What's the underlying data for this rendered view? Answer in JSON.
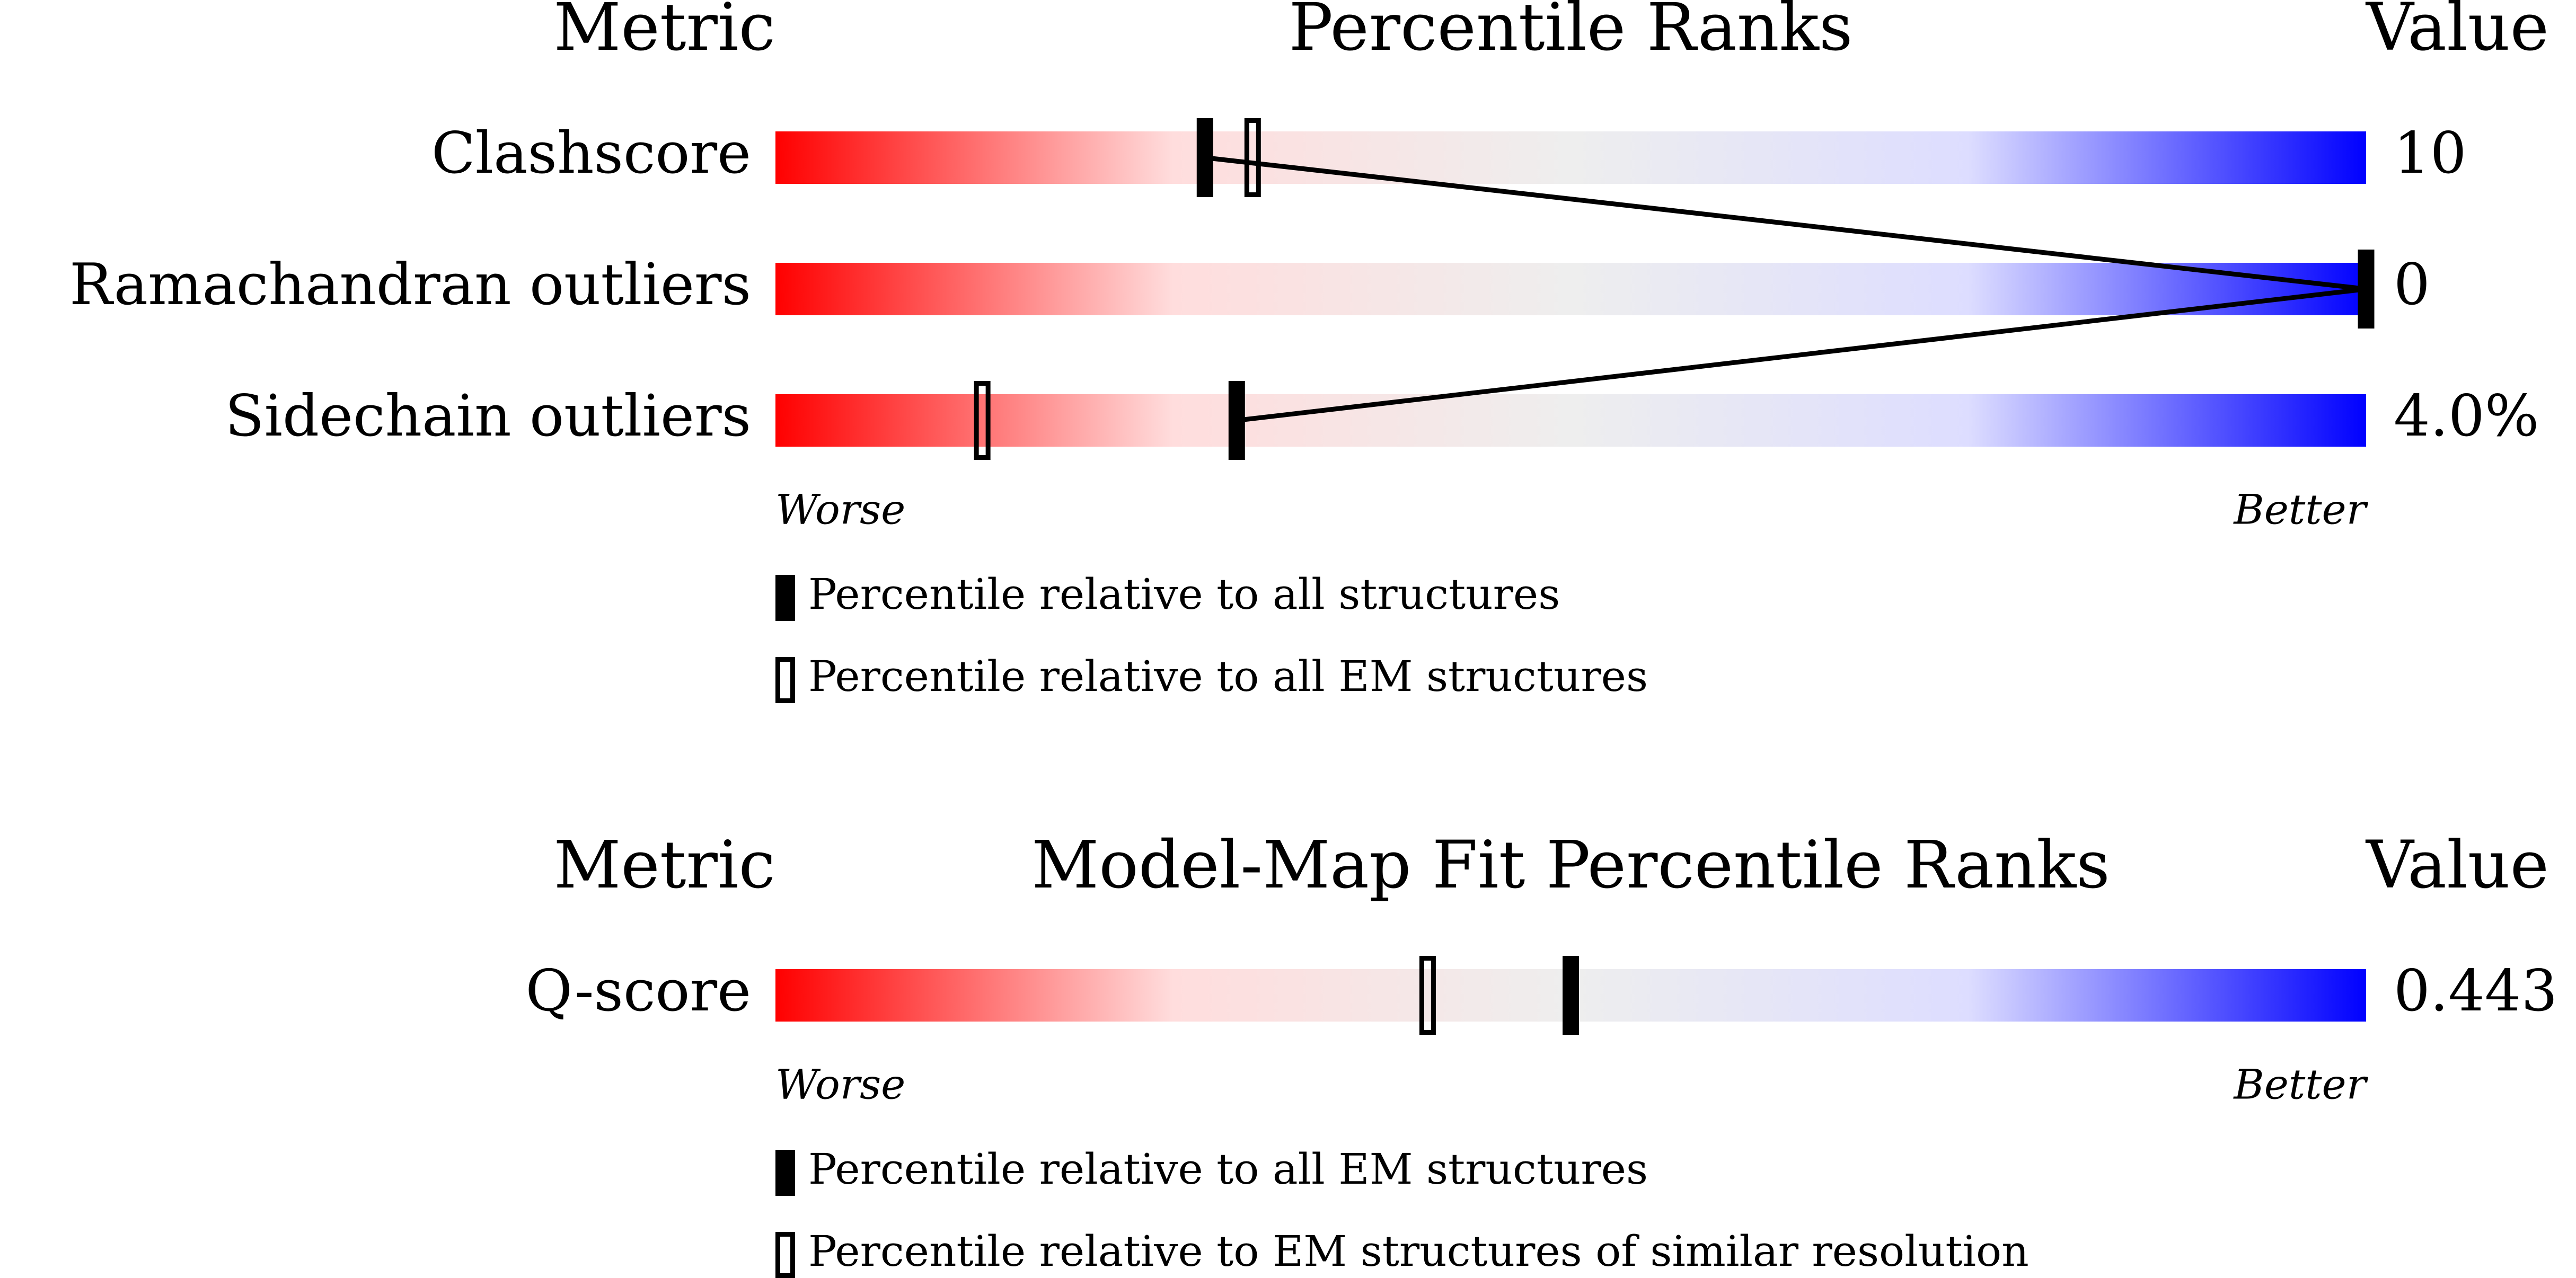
{
  "chart_data": [
    {
      "type": "slider",
      "metric_header": "Metric",
      "title": "Percentile Ranks",
      "value_header": "Value",
      "categories": [
        "Clashscore",
        "Ramachandran outliers",
        "Sidechain outliers"
      ],
      "metric_values": [
        "10",
        "0",
        "4.0%"
      ],
      "xlim": [
        0,
        100
      ],
      "worse": "Worse",
      "better": "Better",
      "gradient": [
        "#ff0000",
        "#ffdddd",
        "#eeeeee",
        "#ddddff",
        "#0000ff"
      ],
      "connect": true,
      "series": [
        {
          "name": "Percentile relative to all structures",
          "marker": "filled",
          "color": "#000000",
          "values": [
            27,
            100,
            29
          ]
        },
        {
          "name": "Percentile relative to all EM structures",
          "marker": "open",
          "color": "#000000",
          "values": [
            30,
            null,
            13
          ]
        }
      ]
    },
    {
      "type": "slider",
      "metric_header": "Metric",
      "title": "Model-Map Fit Percentile Ranks",
      "value_header": "Value",
      "categories": [
        "Q-score"
      ],
      "metric_values": [
        "0.443"
      ],
      "xlim": [
        0,
        100
      ],
      "worse": "Worse",
      "better": "Better",
      "gradient": [
        "#ff0000",
        "#ffdddd",
        "#eeeeee",
        "#ddddff",
        "#0000ff"
      ],
      "connect": false,
      "series": [
        {
          "name": "Percentile relative to all EM structures",
          "marker": "filled",
          "color": "#000000",
          "values": [
            50
          ]
        },
        {
          "name": "Percentile relative to EM structures of similar resolution",
          "marker": "open",
          "color": "#000000",
          "values": [
            41
          ]
        }
      ]
    }
  ]
}
